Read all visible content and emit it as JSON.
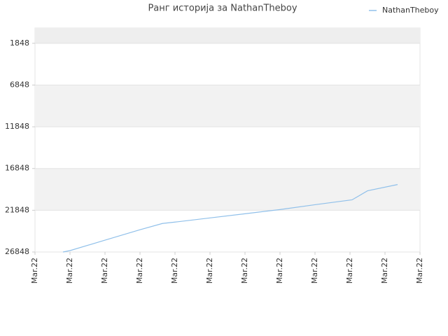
{
  "chart_data": {
    "type": "line",
    "title": "Ранг историја за NathanTheboy",
    "x": [
      0.8,
      1,
      2,
      3,
      3.64,
      4,
      5,
      6,
      7,
      8,
      9.06,
      9.5,
      10.36
    ],
    "series": [
      {
        "name": "NathanTheboy",
        "color": "#90c0ea",
        "values": [
          26848,
          26681,
          25431,
          24181,
          23431,
          23265,
          22765,
          22265,
          21765,
          21181,
          20598,
          19515,
          18765
        ]
      }
    ],
    "xlim": [
      0,
      11
    ],
    "xticks": [
      {
        "value": 0,
        "label": "Mar.22"
      },
      {
        "value": 1,
        "label": "Mar.22"
      },
      {
        "value": 2,
        "label": "Mar.22"
      },
      {
        "value": 3,
        "label": "Mar.22"
      },
      {
        "value": 4,
        "label": "Mar.22"
      },
      {
        "value": 5,
        "label": "Mar.22"
      },
      {
        "value": 6,
        "label": "Mar.22"
      },
      {
        "value": 7,
        "label": "Mar.22"
      },
      {
        "value": 8,
        "label": "Mar.22"
      },
      {
        "value": 9,
        "label": "Mar.22"
      },
      {
        "value": 10,
        "label": "Mar.22"
      },
      {
        "value": 11,
        "label": "Mar.22"
      }
    ],
    "ylim": [
      26848,
      15
    ],
    "yticks": [
      1848,
      6848,
      11848,
      16848,
      21848,
      26848
    ],
    "grid": true,
    "legend": "top-right"
  }
}
